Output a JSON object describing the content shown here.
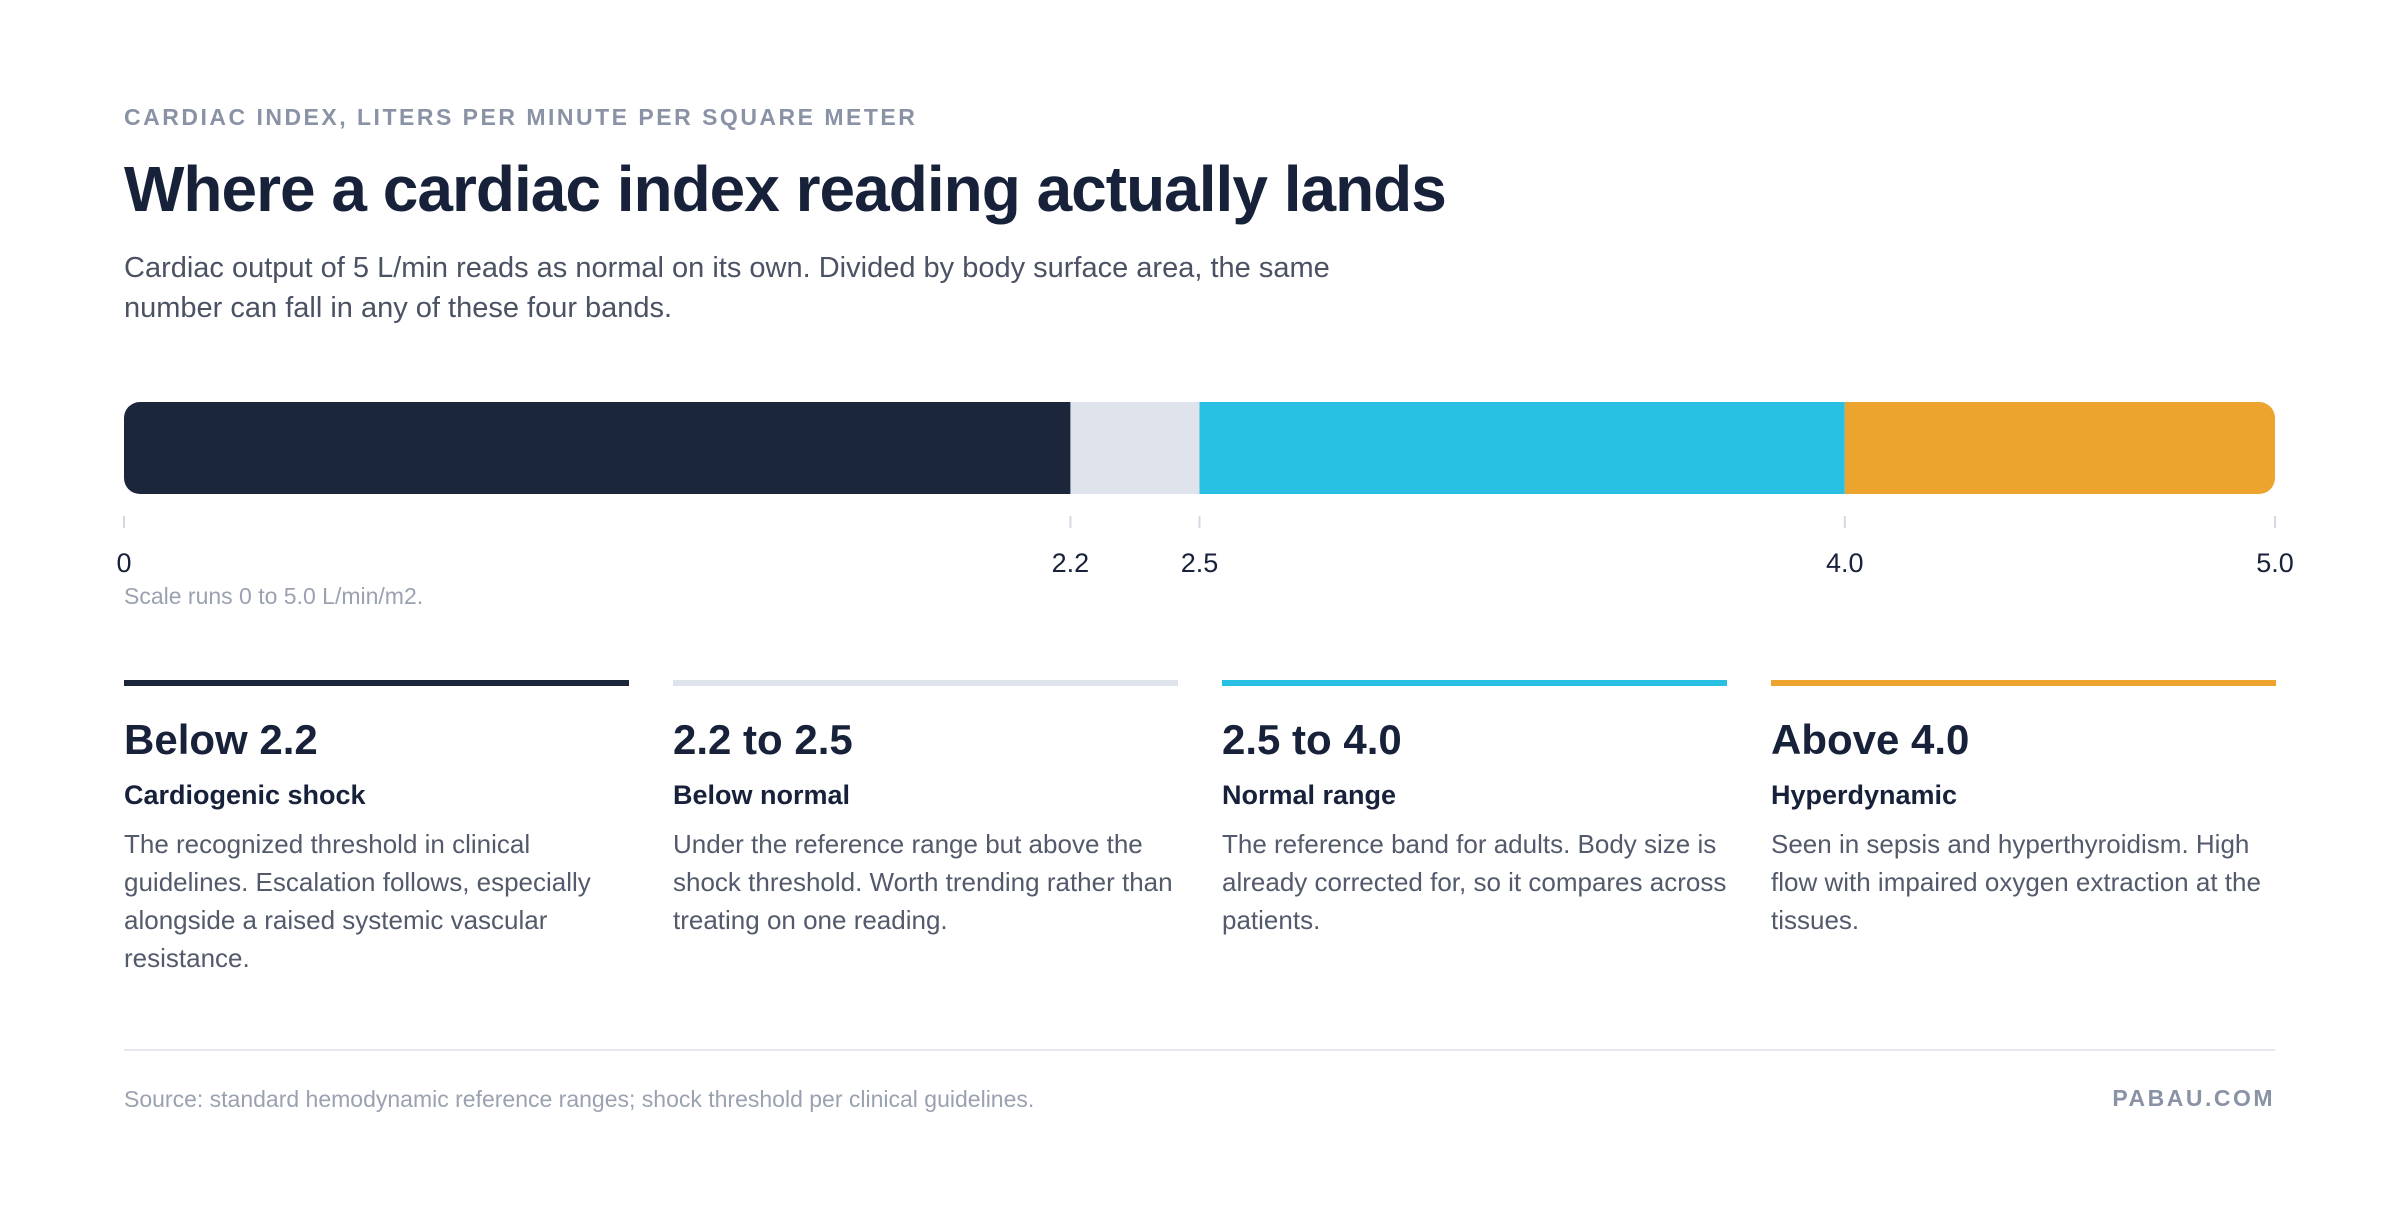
{
  "chart_data": {
    "type": "range_bar",
    "kicker": "CARDIAC INDEX, LITERS PER MINUTE PER SQUARE METER",
    "title": "Where a cardiac index reading actually lands",
    "subtitle": "Cardiac output of 5 L/min reads as normal on its own. Divided by body surface area, the same number can fall in any of these four bands.",
    "xlim": [
      0,
      5.0
    ],
    "xticks": [
      0,
      2.2,
      2.5,
      {
        "value": 4.0,
        "label": "4.0"
      },
      {
        "value": 5.0,
        "label": "5.0"
      }
    ],
    "note": "Scale runs 0 to 5.0 L/min/m2.",
    "bands": [
      {
        "from": 0,
        "to": 2.2,
        "color": "#1c263b",
        "label": "Below 2.2",
        "name": "Cardiogenic shock",
        "description": "The recognized threshold in clinical guidelines. Escalation follows, especially alongside a raised systemic vascular resistance."
      },
      {
        "from": 2.2,
        "to": 2.5,
        "color": "#dfe3ec",
        "label": "2.2 to 2.5",
        "name": "Below normal",
        "description": "Under the reference range but above the shock threshold. Worth trending rather than treating on one reading."
      },
      {
        "from": 2.5,
        "to": 4.0,
        "color": "#27bfe2",
        "label": "2.5 to 4.0",
        "name": "Normal range",
        "description": "The reference band for adults. Body size is already corrected for, so it compares across patients."
      },
      {
        "from": 4.0,
        "to": 5.0,
        "color": "#eda42e",
        "label": "Above 4.0",
        "name": "Hyperdynamic",
        "description": "Seen in sepsis and hyperthyroidism. High flow with impaired oxygen extraction at the tissues."
      }
    ],
    "source": "Source: standard hemodynamic reference ranges; shock threshold per clinical guidelines.",
    "brand": "PABAU.COM"
  }
}
